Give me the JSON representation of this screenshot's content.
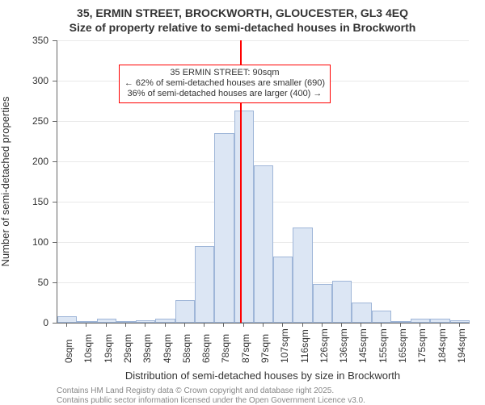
{
  "title_line1": "35, ERMIN STREET, BROCKWORTH, GLOUCESTER, GL3 4EQ",
  "title_line2": "Size of property relative to semi-detached houses in Brockworth",
  "yaxis_label": "Number of semi-detached properties",
  "xaxis_label": "Distribution of semi-detached houses by size in Brockworth",
  "footer_line1": "Contains HM Land Registry data © Crown copyright and database right 2025.",
  "footer_line2": "Contains public sector information licensed under the Open Government Licence v3.0.",
  "chart": {
    "type": "histogram",
    "ylim": [
      0,
      350
    ],
    "ytick_step": 50,
    "yticks": [
      0,
      50,
      100,
      150,
      200,
      250,
      300,
      350
    ],
    "x_categories": [
      "0sqm",
      "10sqm",
      "19sqm",
      "29sqm",
      "39sqm",
      "49sqm",
      "58sqm",
      "68sqm",
      "78sqm",
      "87sqm",
      "97sqm",
      "107sqm",
      "116sqm",
      "126sqm",
      "136sqm",
      "145sqm",
      "155sqm",
      "165sqm",
      "175sqm",
      "184sqm",
      "194sqm"
    ],
    "values": [
      8,
      0,
      5,
      0,
      3,
      5,
      28,
      95,
      235,
      263,
      195,
      82,
      118,
      48,
      52,
      25,
      15,
      0,
      5,
      5,
      3
    ],
    "bar_fill": "#dce6f4",
    "bar_stroke": "#9fb6d8",
    "grid_color": "#e9e9e9",
    "axis_color": "#666666",
    "background_color": "#ffffff",
    "tick_fontsize": 12,
    "title_fontsize": 14,
    "label_fontsize": 13,
    "footer_fontsize": 10,
    "footer_color": "#888888",
    "bar_width_ratio": 1.0,
    "reference_line": {
      "index_position": 9.3,
      "color": "#ff0000",
      "width": 2
    },
    "annotation": {
      "border_color": "#ff0000",
      "background": "#ffffff",
      "fontsize": 11,
      "line1": "35 ERMIN STREET: 90sqm",
      "line2": "← 62% of semi-detached houses are smaller (690)",
      "line3": "36% of semi-detached houses are larger (400) →",
      "top_value": 320
    }
  }
}
